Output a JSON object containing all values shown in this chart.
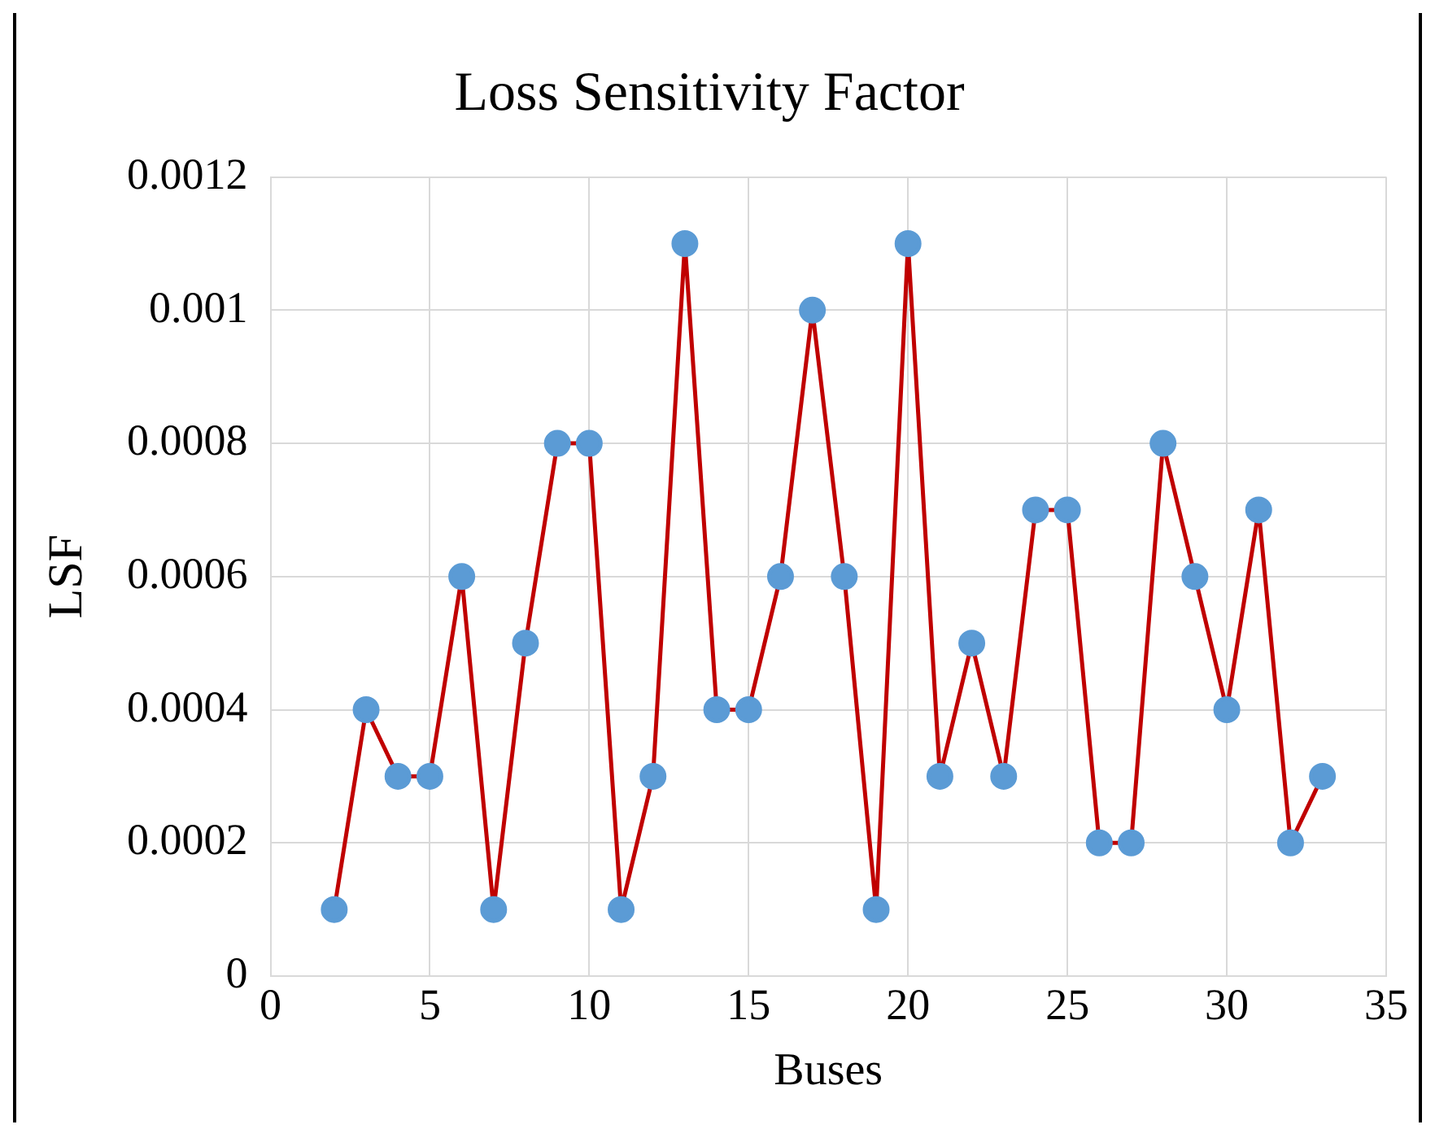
{
  "chart_data": {
    "type": "line",
    "title": "Loss Sensitivity Factor",
    "xlabel": "Buses",
    "ylabel": "LSF",
    "x": [
      2,
      3,
      4,
      5,
      6,
      7,
      8,
      9,
      10,
      11,
      12,
      13,
      14,
      15,
      16,
      17,
      18,
      19,
      20,
      21,
      22,
      23,
      24,
      25,
      26,
      27,
      28,
      29,
      30,
      31,
      32,
      33
    ],
    "series": [
      {
        "color": "#c00000",
        "colors": [
          "#5b9bd5",
          "#5b9bd5",
          "#5b9bd5",
          "#5b9bd5",
          "#5b9bd5",
          "#5b9bd5",
          "#5b9bd5",
          "#5b9bd5",
          "#5b9bd5",
          "#5b9bd5",
          "#5b9bd5",
          "#5b9bd5",
          "#5b9bd5",
          "#5b9bd5",
          "#5b9bd5",
          "#5b9bd5",
          "#5b9bd5",
          "#5b9bd5",
          "#5b9bd5",
          "#5b9bd5",
          "#5b9bd5",
          "#5b9bd5",
          "#5b9bd5",
          "#5b9bd5",
          "#5b9bd5",
          "#5b9bd5",
          "#5b9bd5",
          "#5b9bd5",
          "#5b9bd5",
          "#5b9bd5",
          "#5b9bd5",
          "#5b9bd5"
        ],
        "values": [
          0.0001,
          0.0004,
          0.0003,
          0.0003,
          0.0006,
          0.0001,
          0.0005,
          0.0008,
          0.0008,
          0.0001,
          0.0003,
          0.0011,
          0.0004,
          0.0004,
          0.0006,
          0.001,
          0.0006,
          0.0001,
          0.0011,
          0.0003,
          0.0005,
          0.0003,
          0.0007,
          0.0007,
          0.0002,
          0.0002,
          0.0008,
          0.0006,
          0.0004,
          0.0007,
          0.0002,
          0.0003
        ]
      }
    ],
    "xlim": [
      0,
      35
    ],
    "xticks": [
      0,
      5,
      10,
      15,
      20,
      25,
      30,
      35
    ],
    "ylim": [
      0,
      0.0012
    ],
    "yticks": [
      0,
      0.0002,
      0.0004,
      0.0006,
      0.0008,
      0.001,
      0.0012
    ],
    "grid": true,
    "legend": false,
    "marker": "circle",
    "line_style": "solid"
  }
}
